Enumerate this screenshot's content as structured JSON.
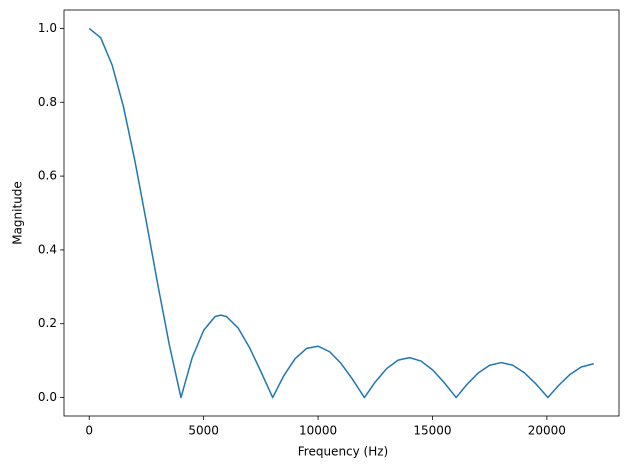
{
  "chart_data": {
    "type": "line",
    "x_label": "Frequency (Hz)",
    "y_label": "Magnitude",
    "x": [
      0,
      500,
      1000,
      1500,
      2000,
      2500,
      3000,
      3500,
      4009,
      4500,
      5000,
      5500,
      5750,
      6000,
      6500,
      7000,
      7500,
      8018,
      8500,
      9000,
      9500,
      10000,
      10500,
      11000,
      11500,
      12027,
      12500,
      13000,
      13500,
      14000,
      14500,
      15000,
      15500,
      16036,
      16500,
      17000,
      17500,
      18000,
      18500,
      19000,
      19500,
      20045,
      20500,
      21000,
      21500,
      22000,
      22050
    ],
    "series": [
      {
        "name": "Magnitude",
        "color": "#1f77b4",
        "values": [
          1.0,
          0.975,
          0.901,
          0.787,
          0.64,
          0.475,
          0.305,
          0.143,
          0.0,
          0.108,
          0.182,
          0.2196,
          0.2234,
          0.2193,
          0.189,
          0.136,
          0.0707,
          0.0,
          0.0589,
          0.1057,
          0.1331,
          0.139,
          0.1244,
          0.0929,
          0.05,
          0.0,
          0.0423,
          0.0785,
          0.1013,
          0.1082,
          0.0988,
          0.0753,
          0.0415,
          0.0,
          0.035,
          0.0666,
          0.0874,
          0.0948,
          0.0879,
          0.068,
          0.0383,
          0.0,
          0.0319,
          0.062,
          0.0827,
          0.0908,
          0.0909
        ]
      }
    ],
    "xlim": [
      -1102.5,
      23152.5
    ],
    "ylim": [
      -0.05,
      1.05
    ],
    "xticks": [
      0,
      5000,
      10000,
      15000,
      20000
    ],
    "yticks": [
      {
        "value": 0,
        "label": "0.0"
      },
      0.2,
      0.4,
      0.6,
      0.8,
      {
        "value": 1,
        "label": "1.0"
      }
    ],
    "grid": false
  }
}
